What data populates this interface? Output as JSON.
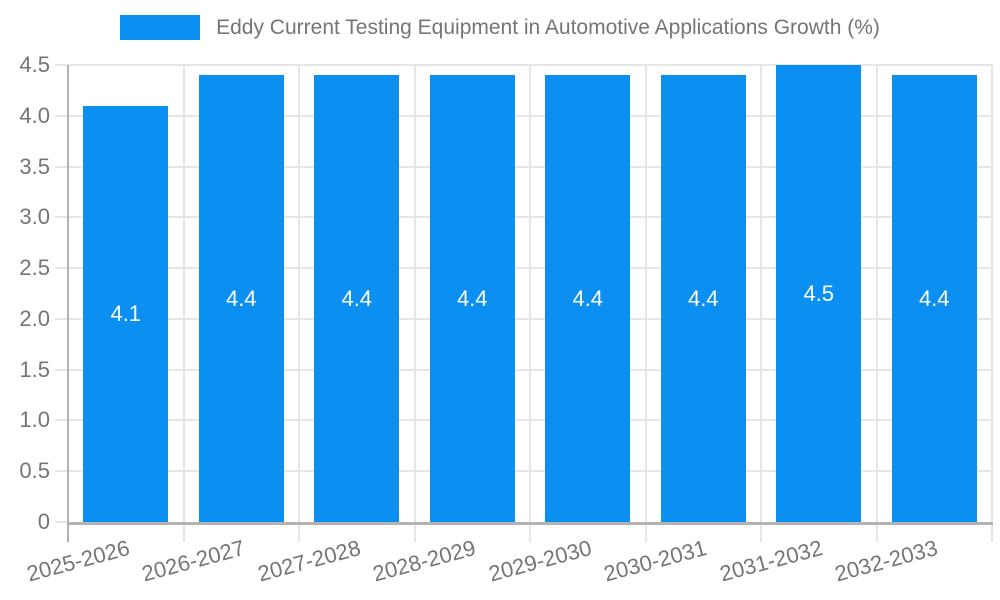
{
  "legend": {
    "label": "Eddy Current Testing Equipment in Automotive Applications Growth (%)"
  },
  "colors": {
    "bar": "#0B90F2",
    "grid": "#E6E6E6",
    "axis": "#B3B3B3",
    "text": "#757575",
    "bar_label_text": "#FFFFFF",
    "background": "#FFFFFF"
  },
  "chart_data": {
    "type": "bar",
    "title": "Eddy Current Testing Equipment in Automotive Applications Growth (%)",
    "categories": [
      "2025-2026",
      "2026-2027",
      "2027-2028",
      "2028-2029",
      "2029-2030",
      "2030-2031",
      "2031-2032",
      "2032-2033"
    ],
    "values": [
      4.1,
      4.4,
      4.4,
      4.4,
      4.4,
      4.4,
      4.5,
      4.4
    ],
    "bar_labels": [
      "4.1",
      "4.4",
      "4.4",
      "4.4",
      "4.4",
      "4.4",
      "4.5",
      "4.4"
    ],
    "xlabel": "",
    "ylabel": "",
    "ylim": [
      0,
      4.5
    ],
    "y_ticks": [
      "4.5",
      "4.0",
      "3.5",
      "3.0",
      "2.5",
      "2.0",
      "1.5",
      "1.0",
      "0.5",
      "0"
    ],
    "grid": true,
    "legend_position": "top",
    "x_label_rotation_deg": -15
  }
}
